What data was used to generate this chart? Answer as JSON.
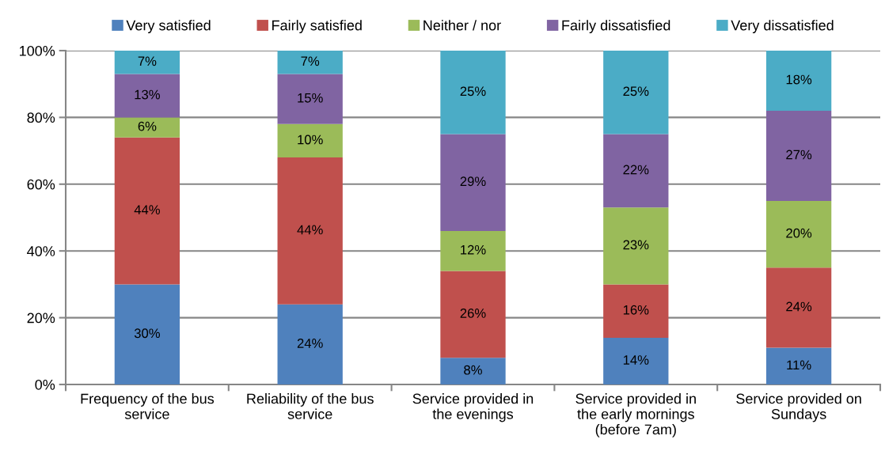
{
  "chart_data": {
    "type": "bar",
    "stacked": true,
    "categories": [
      "Frequency of the bus\nservice",
      "Reliability of the bus\nservice",
      "Service provided in\nthe evenings",
      "Service provided in\nthe early mornings\n(before 7am)",
      "Service provided on\nSundays"
    ],
    "series": [
      {
        "name": "Very satisfied",
        "color": "#4f81bd",
        "values": [
          30,
          24,
          8,
          14,
          11
        ],
        "value_labels": [
          "30%",
          "24%",
          "8%",
          "14%",
          "11%"
        ]
      },
      {
        "name": "Fairly satisfied",
        "color": "#c0504d",
        "values": [
          44,
          44,
          26,
          16,
          24
        ],
        "value_labels": [
          "44%",
          "44%",
          "26%",
          "16%",
          "24%"
        ]
      },
      {
        "name": "Neither / nor",
        "color": "#9bbb59",
        "values": [
          6,
          10,
          12,
          23,
          20
        ],
        "value_labels": [
          "6%",
          "10%",
          "12%",
          "23%",
          "20%"
        ]
      },
      {
        "name": "Fairly dissatisfied",
        "color": "#8064a2",
        "values": [
          13,
          15,
          29,
          22,
          27
        ],
        "value_labels": [
          "13%",
          "15%",
          "29%",
          "22%",
          "27%"
        ]
      },
      {
        "name": "Very dissatisfied",
        "color": "#4bacc6",
        "values": [
          7,
          7,
          25,
          25,
          18
        ],
        "value_labels": [
          "7%",
          "7%",
          "25%",
          "25%",
          "18%"
        ]
      }
    ],
    "ylim": [
      0,
      100
    ],
    "yticks": [
      {
        "value": 0,
        "label": "0%"
      },
      {
        "value": 20,
        "label": "20%"
      },
      {
        "value": 40,
        "label": "40%"
      },
      {
        "value": 60,
        "label": "60%"
      },
      {
        "value": 80,
        "label": "80%"
      },
      {
        "value": 100,
        "label": "100%"
      }
    ],
    "grid": "y",
    "legend": "top"
  }
}
